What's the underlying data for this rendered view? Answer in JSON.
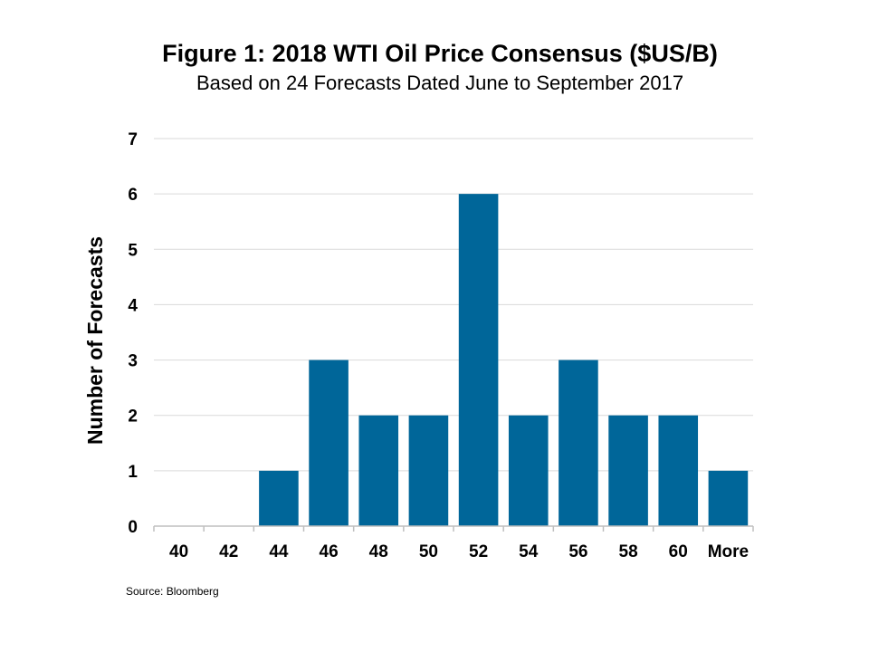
{
  "chart_data": {
    "type": "bar",
    "title": "Figure 1: 2018 WTI Oil Price Consensus ($US/B)",
    "subtitle": "Based on 24 Forecasts Dated June to September 2017",
    "xlabel": "",
    "ylabel": "Number of Forecasts",
    "categories": [
      "40",
      "42",
      "44",
      "46",
      "48",
      "50",
      "52",
      "54",
      "56",
      "58",
      "60",
      "More"
    ],
    "values": [
      0,
      0,
      1,
      3,
      2,
      2,
      6,
      2,
      3,
      2,
      2,
      1
    ],
    "ylim": [
      0,
      7
    ],
    "yticks": [
      "0",
      "1",
      "2",
      "3",
      "4",
      "5",
      "6",
      "7"
    ],
    "grid": true,
    "bar_color": "#006699",
    "source": "Source: Bloomberg"
  }
}
